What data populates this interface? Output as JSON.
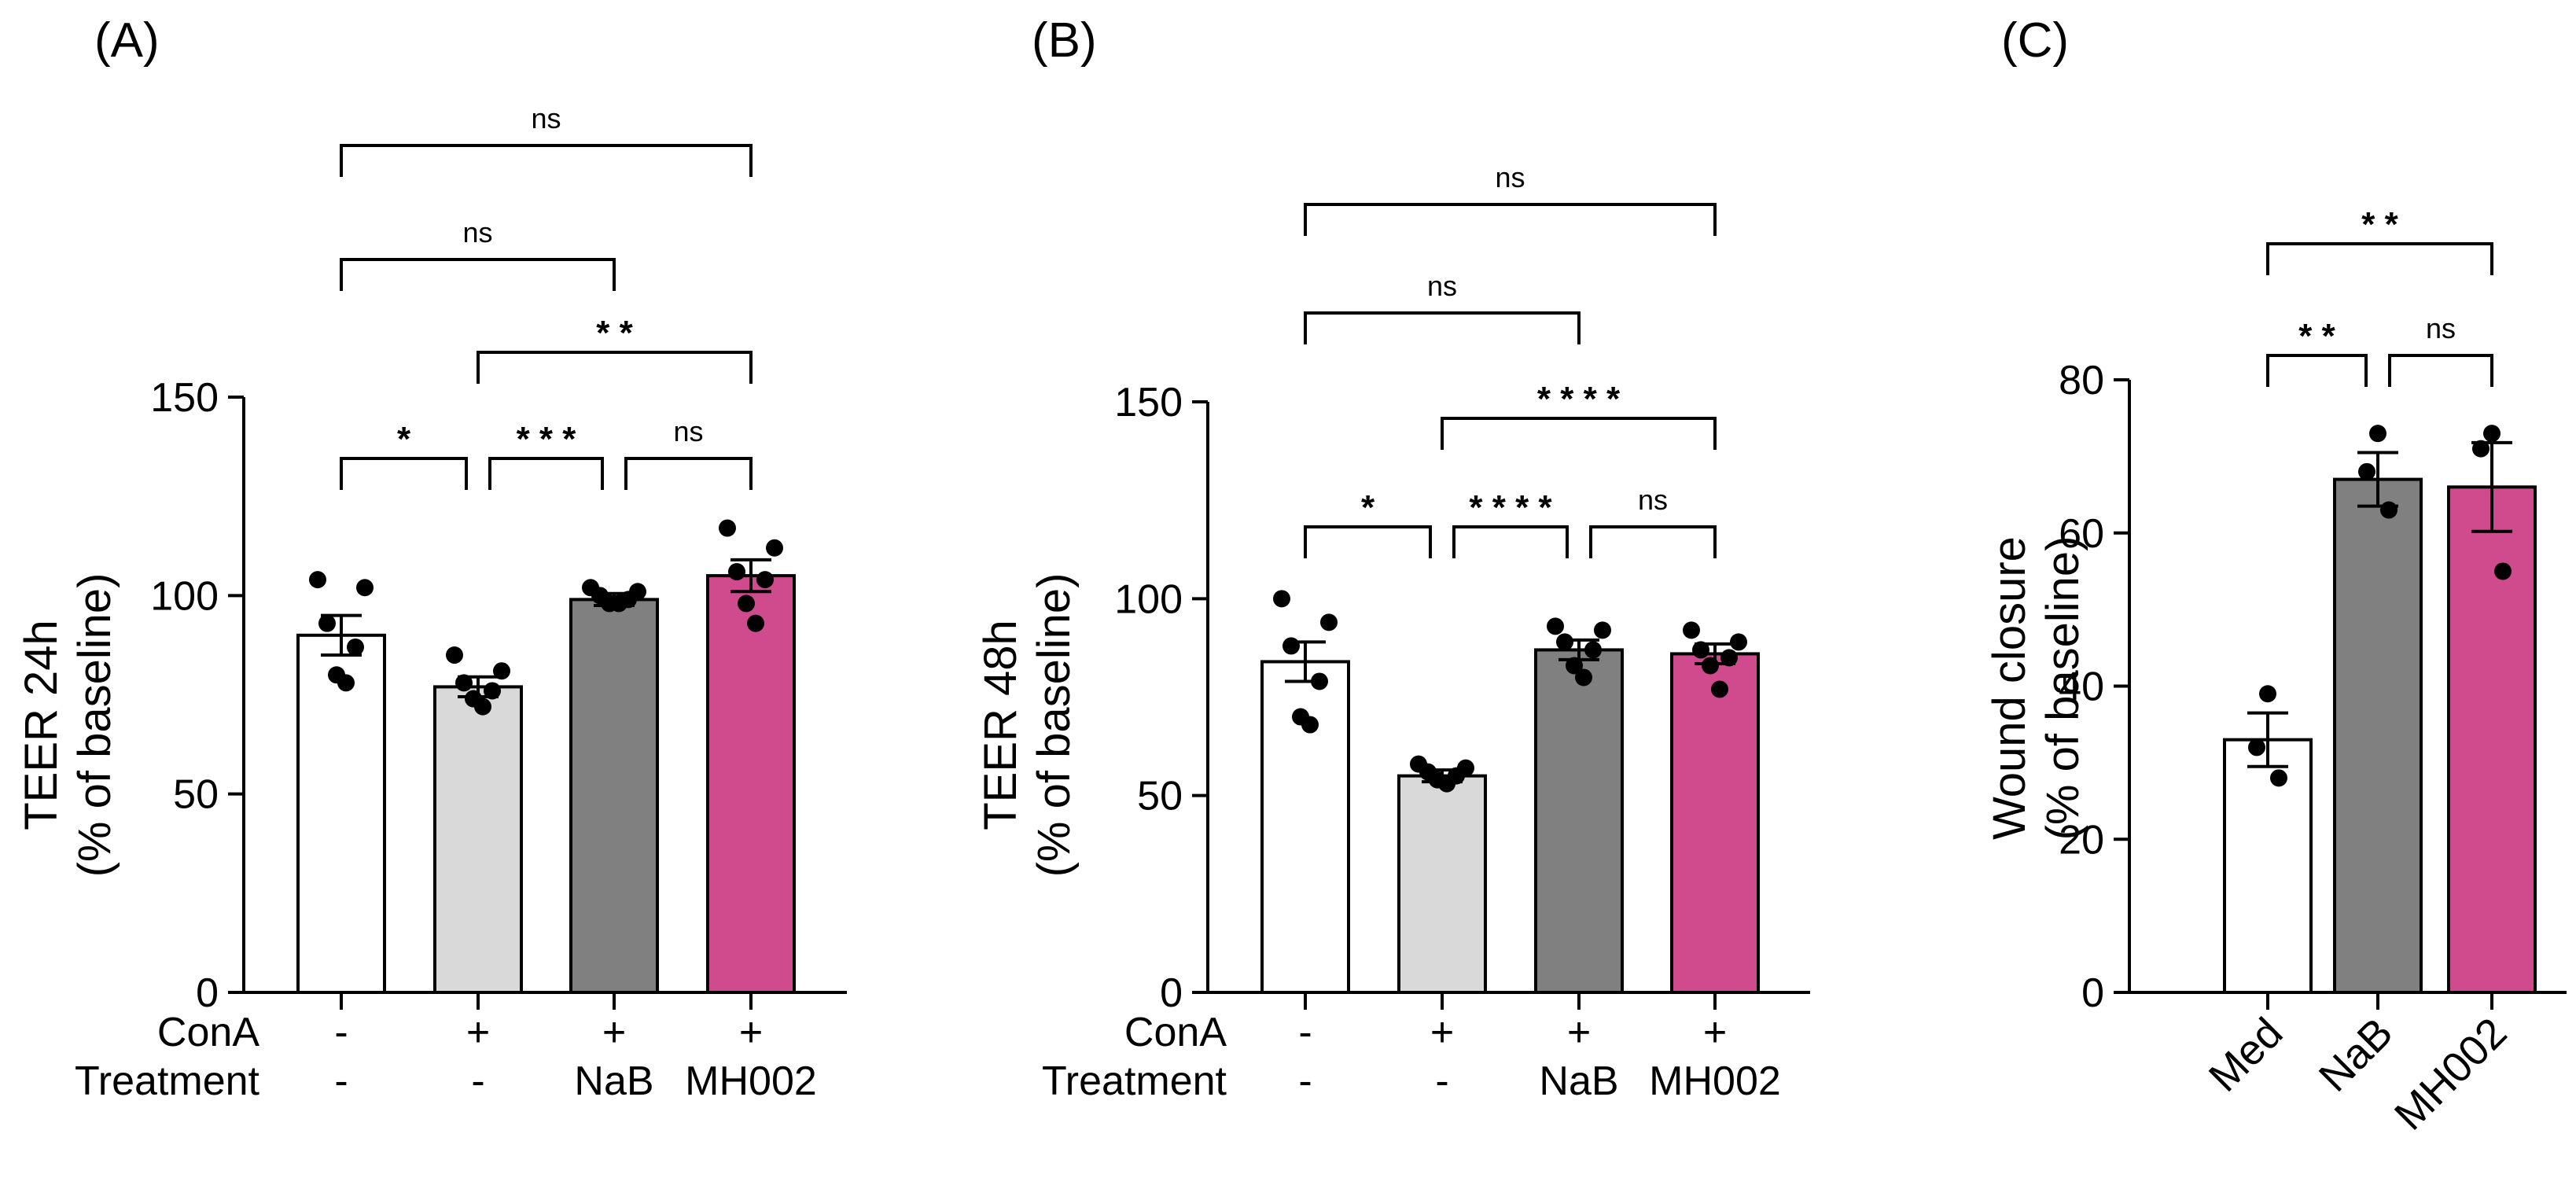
{
  "colors": {
    "med": "#ffffff",
    "cona": "#d9d9d9",
    "nab": "#808080",
    "mh002": "#d04a8e",
    "outline": "#000000"
  },
  "chart_data": [
    {
      "type": "bar",
      "panel_label": "(A)",
      "ylabel": [
        "TEER 24h",
        "(% of baseline)"
      ],
      "ylim": [
        0,
        150
      ],
      "yticks": [
        "0",
        "50",
        "100",
        "150"
      ],
      "condition_rows": [
        {
          "label": "ConA",
          "values": [
            "-",
            "+",
            "+",
            "+"
          ]
        },
        {
          "label": "Treatment",
          "values": [
            "-",
            "-",
            "NaB",
            "MH002"
          ]
        }
      ],
      "color_keys": [
        "med",
        "cona",
        "nab",
        "mh002"
      ],
      "values": [
        90,
        77,
        99,
        105
      ],
      "sem": [
        5,
        2.5,
        1.5,
        4
      ],
      "points": [
        [
          104,
          102,
          93,
          87,
          80,
          78
        ],
        [
          85,
          81,
          78,
          76,
          74,
          72
        ],
        [
          102,
          101,
          100,
          99,
          98,
          98
        ],
        [
          117,
          112,
          106,
          104,
          98,
          93
        ]
      ],
      "comparisons": [
        {
          "from": 0,
          "to": 3,
          "label": "ns",
          "level": 4
        },
        {
          "from": 0,
          "to": 2,
          "label": "ns",
          "level": 3
        },
        {
          "from": 1,
          "to": 3,
          "label": "* *",
          "level": 2
        },
        {
          "from": 0,
          "to": 1,
          "label": "*",
          "level": 1
        },
        {
          "from": 1,
          "to": 2,
          "label": "* * *",
          "level": 1
        },
        {
          "from": 2,
          "to": 3,
          "label": "ns",
          "level": 1
        }
      ]
    },
    {
      "type": "bar",
      "panel_label": "(B)",
      "ylabel": [
        "TEER 48h",
        "(% of baseline)"
      ],
      "ylim": [
        0,
        150
      ],
      "yticks": [
        "0",
        "50",
        "100",
        "150"
      ],
      "condition_rows": [
        {
          "label": "ConA",
          "values": [
            "-",
            "+",
            "+",
            "+"
          ]
        },
        {
          "label": "Treatment",
          "values": [
            "-",
            "-",
            "NaB",
            "MH002"
          ]
        }
      ],
      "color_keys": [
        "med",
        "cona",
        "nab",
        "mh002"
      ],
      "values": [
        84,
        55,
        87,
        86
      ],
      "sem": [
        5,
        1.5,
        2.5,
        2.5
      ],
      "points": [
        [
          100,
          94,
          88,
          79,
          70,
          68
        ],
        [
          58,
          57,
          56,
          55,
          54,
          53
        ],
        [
          93,
          92,
          89,
          87,
          83,
          80
        ],
        [
          92,
          89,
          87,
          85,
          83,
          77
        ]
      ],
      "comparisons": [
        {
          "from": 0,
          "to": 3,
          "label": "ns",
          "level": 4
        },
        {
          "from": 0,
          "to": 2,
          "label": "ns",
          "level": 3
        },
        {
          "from": 1,
          "to": 3,
          "label": "* * * *",
          "level": 2
        },
        {
          "from": 0,
          "to": 1,
          "label": "*",
          "level": 1
        },
        {
          "from": 1,
          "to": 2,
          "label": "* * * *",
          "level": 1
        },
        {
          "from": 2,
          "to": 3,
          "label": "ns",
          "level": 1
        }
      ]
    },
    {
      "type": "bar",
      "panel_label": "(C)",
      "ylabel": [
        "Wound closure",
        "(% of baseline)"
      ],
      "ylim": [
        0,
        80
      ],
      "yticks": [
        "0",
        "20",
        "40",
        "60",
        "80"
      ],
      "categories": [
        "Med",
        "NaB",
        "MH002"
      ],
      "color_keys": [
        "med",
        "nab",
        "mh002"
      ],
      "values": [
        33,
        67,
        66
      ],
      "sem": [
        3.5,
        3.5,
        5.8
      ],
      "points": [
        [
          39,
          32,
          28
        ],
        [
          73,
          68,
          63
        ],
        [
          73,
          71,
          55
        ]
      ],
      "comparisons": [
        {
          "from": 0,
          "to": 2,
          "label": "* *",
          "level": 2
        },
        {
          "from": 0,
          "to": 1,
          "label": "* *",
          "level": 1
        },
        {
          "from": 1,
          "to": 2,
          "label": "ns",
          "level": 1
        }
      ]
    }
  ]
}
